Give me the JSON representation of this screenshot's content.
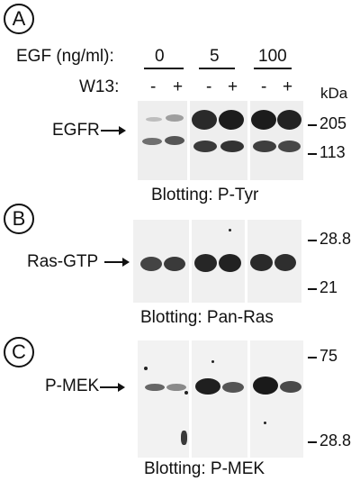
{
  "panels": {
    "a": {
      "letter": "A"
    },
    "b": {
      "letter": "B"
    },
    "c": {
      "letter": "C"
    }
  },
  "treatment": {
    "egf_label": "EGF (ng/ml):",
    "doses": [
      "0",
      "5",
      "100"
    ],
    "w13_label": "W13:",
    "w13_signs": [
      "-",
      "+",
      "-",
      "+",
      "-",
      "+"
    ],
    "kda_label": "kDa"
  },
  "blot_a": {
    "target_label": "EGFR",
    "caption": "Blotting: P-Tyr",
    "markers": [
      "205",
      "113"
    ]
  },
  "blot_b": {
    "target_label": "Ras-GTP",
    "caption": "Blotting: Pan-Ras",
    "markers": [
      "28.8",
      "21"
    ]
  },
  "blot_c": {
    "target_label": "P-MEK",
    "caption": "Blotting: P-MEK",
    "markers": [
      "75",
      "28.8"
    ]
  }
}
